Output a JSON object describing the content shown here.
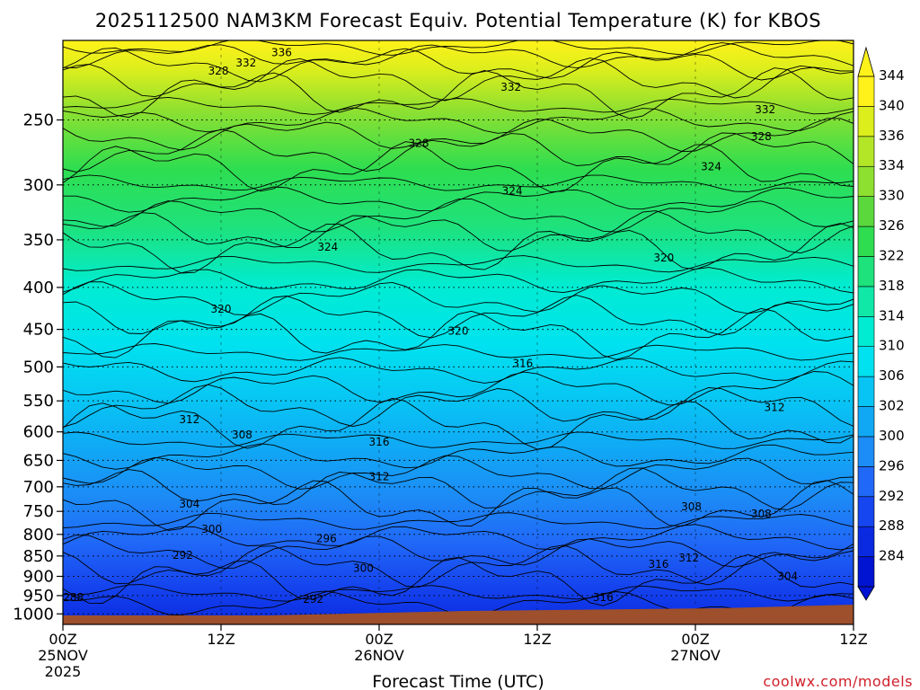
{
  "chart_data": {
    "type": "heatmap",
    "title": "2025112500 NAM3KM Forecast Equiv. Potential Temperature (K) for KBOS",
    "xlabel": "Forecast Time (UTC)",
    "ylabel": "",
    "credit": "coolwx.com/models",
    "x": {
      "range_hours": [
        0,
        60
      ],
      "ticks": [
        {
          "hour": 0,
          "line1": "00Z",
          "line2": "25NOV",
          "line3": "2025"
        },
        {
          "hour": 12,
          "line1": "12Z",
          "line2": "",
          "line3": ""
        },
        {
          "hour": 24,
          "line1": "00Z",
          "line2": "26NOV",
          "line3": ""
        },
        {
          "hour": 36,
          "line1": "12Z",
          "line2": "",
          "line3": ""
        },
        {
          "hour": 48,
          "line1": "00Z",
          "line2": "27NOV",
          "line3": ""
        },
        {
          "hour": 60,
          "line1": "12Z",
          "line2": "",
          "line3": ""
        }
      ]
    },
    "y": {
      "unit": "hPa",
      "scale": "log",
      "inverted": true,
      "range": [
        200,
        1030
      ],
      "ticks": [
        "250",
        "300",
        "350",
        "400",
        "450",
        "500",
        "550",
        "600",
        "650",
        "700",
        "750",
        "800",
        "850",
        "900",
        "950",
        "1000"
      ]
    },
    "colorbar": {
      "levels": [
        {
          "value": "284",
          "color": "#0014d2"
        },
        {
          "value": "288",
          "color": "#0a2ae2"
        },
        {
          "value": "292",
          "color": "#1646ef"
        },
        {
          "value": "296",
          "color": "#2068f7"
        },
        {
          "value": "300",
          "color": "#1c8cf6"
        },
        {
          "value": "302",
          "color": "#10a8f5"
        },
        {
          "value": "306",
          "color": "#08c4f4"
        },
        {
          "value": "310",
          "color": "#00e2ef"
        },
        {
          "value": "314",
          "color": "#00ecd2"
        },
        {
          "value": "318",
          "color": "#10e8a8"
        },
        {
          "value": "322",
          "color": "#1ee27c"
        },
        {
          "value": "326",
          "color": "#2ede50"
        },
        {
          "value": "330",
          "color": "#5ad83c"
        },
        {
          "value": "334",
          "color": "#8ee030"
        },
        {
          "value": "336",
          "color": "#b4e628"
        },
        {
          "value": "340",
          "color": "#dcee1c"
        },
        {
          "value": "344",
          "color": "#fff21a"
        }
      ]
    },
    "contour_labels": [
      {
        "value": "336",
        "hour": 16.6,
        "hpa": 207
      },
      {
        "value": "332",
        "hour": 13.9,
        "hpa": 213
      },
      {
        "value": "328",
        "hour": 11.8,
        "hpa": 218
      },
      {
        "value": "332",
        "hour": 34.0,
        "hpa": 228
      },
      {
        "value": "332",
        "hour": 53.3,
        "hpa": 243
      },
      {
        "value": "328",
        "hour": 53.0,
        "hpa": 262
      },
      {
        "value": "328",
        "hour": 27.0,
        "hpa": 267
      },
      {
        "value": "324",
        "hour": 49.2,
        "hpa": 285
      },
      {
        "value": "324",
        "hour": 34.1,
        "hpa": 305
      },
      {
        "value": "324",
        "hour": 20.1,
        "hpa": 357
      },
      {
        "value": "320",
        "hour": 45.6,
        "hpa": 368
      },
      {
        "value": "320",
        "hour": 12.0,
        "hpa": 425
      },
      {
        "value": "320",
        "hour": 30.0,
        "hpa": 452
      },
      {
        "value": "316",
        "hour": 34.9,
        "hpa": 495
      },
      {
        "value": "312",
        "hour": 54.0,
        "hpa": 560
      },
      {
        "value": "312",
        "hour": 9.6,
        "hpa": 580
      },
      {
        "value": "308",
        "hour": 13.6,
        "hpa": 605
      },
      {
        "value": "316",
        "hour": 24.0,
        "hpa": 617
      },
      {
        "value": "312",
        "hour": 24.0,
        "hpa": 680
      },
      {
        "value": "304",
        "hour": 9.6,
        "hpa": 735
      },
      {
        "value": "308",
        "hour": 47.7,
        "hpa": 740
      },
      {
        "value": "308",
        "hour": 53.0,
        "hpa": 755
      },
      {
        "value": "300",
        "hour": 11.3,
        "hpa": 788
      },
      {
        "value": "296",
        "hour": 20.0,
        "hpa": 810
      },
      {
        "value": "292",
        "hour": 9.1,
        "hpa": 848
      },
      {
        "value": "312",
        "hour": 47.5,
        "hpa": 855
      },
      {
        "value": "316",
        "hour": 45.2,
        "hpa": 870
      },
      {
        "value": "300",
        "hour": 22.8,
        "hpa": 880
      },
      {
        "value": "304",
        "hour": 55.0,
        "hpa": 900
      },
      {
        "value": "288",
        "hour": 0.8,
        "hpa": 955
      },
      {
        "value": "316",
        "hour": 41.0,
        "hpa": 955
      },
      {
        "value": "292",
        "hour": 19.0,
        "hpa": 960
      }
    ]
  }
}
